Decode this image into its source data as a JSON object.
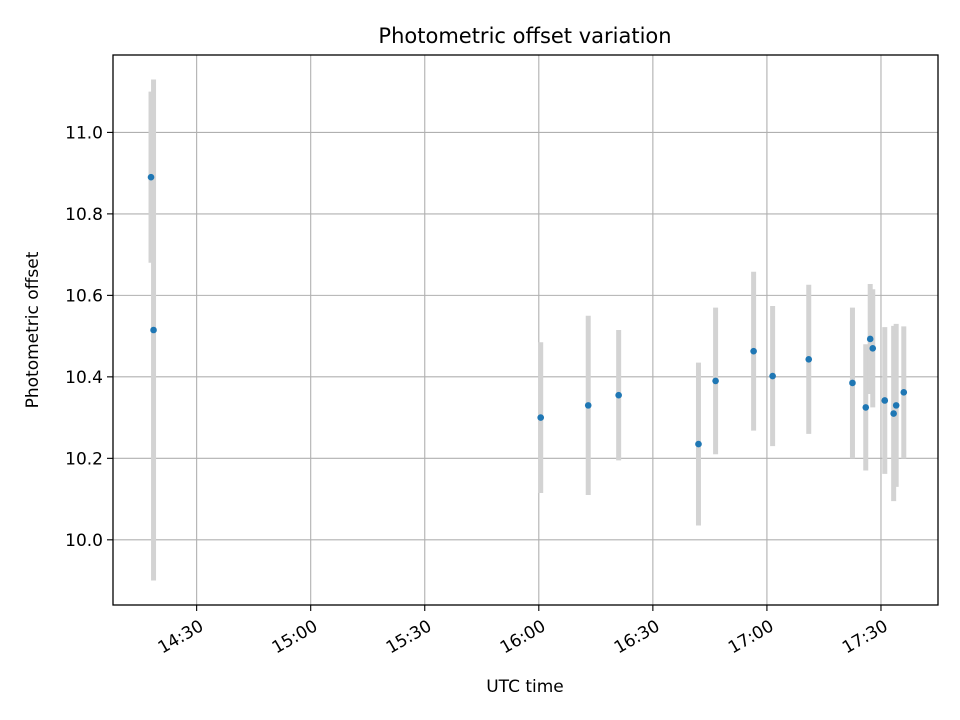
{
  "chart_data": {
    "type": "scatter",
    "title": "Photometric offset variation",
    "xlabel": "UTC time",
    "ylabel": "Photometric offset",
    "x_axis_type": "time",
    "xlim": [
      "14:08",
      "17:45"
    ],
    "ylim": [
      9.84,
      11.19
    ],
    "x_ticks": [
      "14:30",
      "15:00",
      "15:30",
      "16:00",
      "16:30",
      "17:00",
      "17:30"
    ],
    "y_ticks": [
      10.0,
      10.2,
      10.4,
      10.6,
      10.8,
      11.0
    ],
    "y_tick_labels": [
      "10.0",
      "10.2",
      "10.4",
      "10.6",
      "10.8",
      "11.0"
    ],
    "grid": true,
    "legend": "none",
    "marker_color": "#1f77b4",
    "errorbar_color": "#d3d3d3",
    "series": [
      {
        "points": [
          {
            "t": "14:18:00",
            "y": 10.89,
            "err": 0.21
          },
          {
            "t": "14:18:40",
            "y": 10.515,
            "err": 0.615
          },
          {
            "t": "16:00:30",
            "y": 10.3,
            "err": 0.185
          },
          {
            "t": "16:13:00",
            "y": 10.33,
            "err": 0.22
          },
          {
            "t": "16:21:00",
            "y": 10.355,
            "err": 0.16
          },
          {
            "t": "16:42:00",
            "y": 10.235,
            "err": 0.2
          },
          {
            "t": "16:46:30",
            "y": 10.39,
            "err": 0.18
          },
          {
            "t": "16:56:30",
            "y": 10.463,
            "err": 0.195
          },
          {
            "t": "17:01:30",
            "y": 10.402,
            "err": 0.172
          },
          {
            "t": "17:11:00",
            "y": 10.443,
            "err": 0.183
          },
          {
            "t": "17:22:30",
            "y": 10.385,
            "err": 0.185
          },
          {
            "t": "17:26:00",
            "y": 10.325,
            "err": 0.155
          },
          {
            "t": "17:27:10",
            "y": 10.493,
            "err": 0.135
          },
          {
            "t": "17:27:50",
            "y": 10.47,
            "err": 0.145
          },
          {
            "t": "17:31:00",
            "y": 10.342,
            "err": 0.18
          },
          {
            "t": "17:33:20",
            "y": 10.31,
            "err": 0.215
          },
          {
            "t": "17:34:00",
            "y": 10.33,
            "err": 0.2
          },
          {
            "t": "17:36:00",
            "y": 10.362,
            "err": 0.162
          }
        ]
      }
    ]
  }
}
